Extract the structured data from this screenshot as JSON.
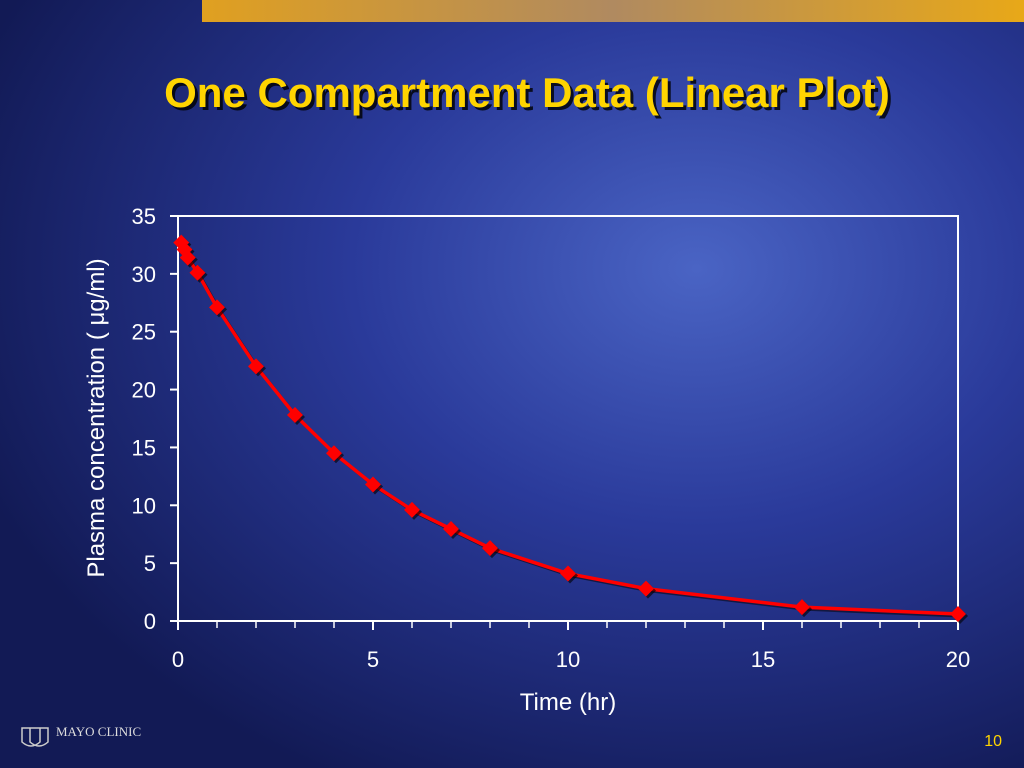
{
  "slide": {
    "page_number": "10",
    "logo": "MAYO CLINIC"
  },
  "chart_data": {
    "type": "line",
    "title": "One Compartment Data (Linear Plot)",
    "x_label": "Time (hr)",
    "y_label": "Plasma concentration ( μg/ml)",
    "x": [
      0.083,
      0.167,
      0.25,
      0.5,
      1,
      2,
      3,
      4,
      5,
      6,
      7,
      8,
      10,
      12,
      16,
      20
    ],
    "series": [
      {
        "color": "#ff0000",
        "values": [
          32.7,
          32.1,
          31.4,
          30.1,
          27.1,
          22.0,
          17.8,
          14.5,
          11.8,
          9.6,
          7.95,
          6.3,
          4.1,
          2.8,
          1.2,
          0.6
        ]
      }
    ],
    "xlim": [
      0,
      20
    ],
    "xticks": [
      0,
      5,
      10,
      15,
      20
    ],
    "xminorticks": [
      0,
      1,
      2,
      3,
      4,
      5,
      6,
      7,
      8,
      9,
      10,
      11,
      12,
      13,
      14,
      15,
      16,
      17,
      18,
      19,
      20
    ],
    "ylim": [
      0,
      35
    ],
    "yticks": [
      0,
      5,
      10,
      15,
      20,
      25,
      30,
      35
    ],
    "grid": false,
    "markers": "diamond"
  }
}
